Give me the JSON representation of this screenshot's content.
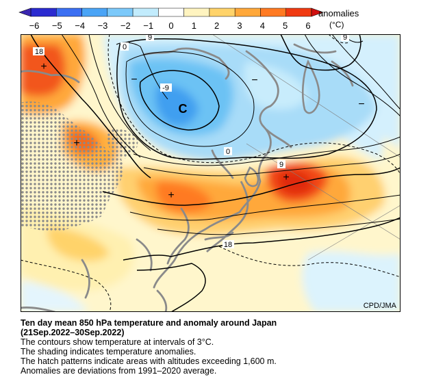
{
  "colorbar": {
    "ticks": [
      "−6",
      "−5",
      "−4",
      "−3",
      "−2",
      "−1",
      "0",
      "1",
      "2",
      "3",
      "4",
      "5",
      "6"
    ],
    "colors": [
      "#2b2bd0",
      "#3b6ff2",
      "#4aa4f6",
      "#7cc9fa",
      "#c2ecfd",
      "#ffffff",
      "#fff4c0",
      "#ffd36a",
      "#ffa83a",
      "#ff7a22",
      "#f03a12"
    ],
    "label": "anomalies",
    "unit": "(°C)"
  },
  "map": {
    "credit": "CPD/JMA",
    "contour_labels": {
      "c18_nw": "18",
      "c9_n": "9",
      "c0_n": "0",
      "c9_ne": "9",
      "cm9": "-9",
      "c0_mid": "0",
      "c9_east": "9",
      "c18_south": "18"
    },
    "cold_center": "C",
    "marks": {
      "plus": "+",
      "minus": "−"
    }
  },
  "caption": {
    "title": "Ten day mean 850 hPa temperature and anomaly around Japan",
    "period": "(21Sep.2022–30Sep.2022)",
    "lines": [
      "The contours show temperature at intervals of 3°C.",
      "The shading indicates temperature anomalies.",
      "The hatch patterns indicate areas with altitudes exceeding 1,600 m.",
      "Anomalies are deviations from 1991–2020 average."
    ]
  }
}
